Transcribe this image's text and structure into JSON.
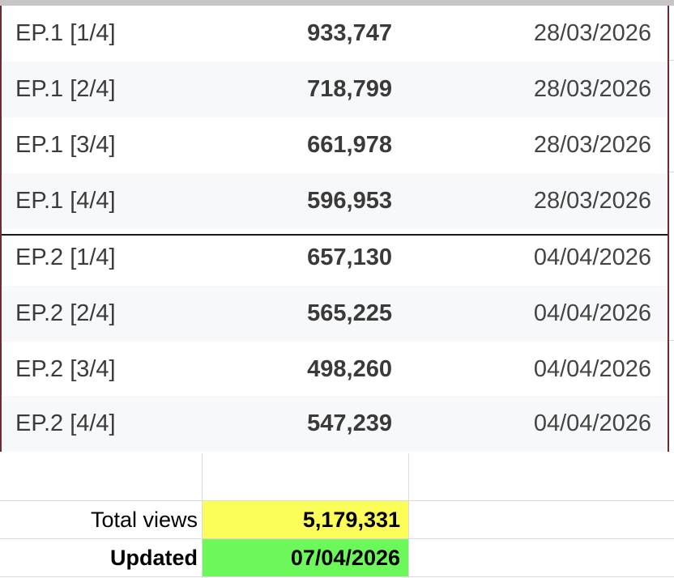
{
  "episodes": [
    {
      "ep": "EP.1 [1/4]",
      "views": "933,747",
      "date": "28/03/2026"
    },
    {
      "ep": "EP.1 [2/4]",
      "views": "718,799",
      "date": "28/03/2026"
    },
    {
      "ep": "EP.1 [3/4]",
      "views": "661,978",
      "date": "28/03/2026"
    },
    {
      "ep": "EP.1 [4/4]",
      "views": "596,953",
      "date": "28/03/2026"
    },
    {
      "ep": "EP.2 [1/4]",
      "views": "657,130",
      "date": "04/04/2026"
    },
    {
      "ep": "EP.2 [2/4]",
      "views": "565,225",
      "date": "04/04/2026"
    },
    {
      "ep": "EP.2 [3/4]",
      "views": "498,260",
      "date": "04/04/2026"
    },
    {
      "ep": "EP.2 [4/4]",
      "views": "547,239",
      "date": "04/04/2026"
    }
  ],
  "summary": {
    "total_label": "Total views",
    "total_value": "5,179,331",
    "updated_label": "Updated",
    "updated_value": "07/04/2026"
  },
  "colors": {
    "total_highlight": "#fdfd5a",
    "updated_highlight": "#6cf75a",
    "table_border": "#6d2b33"
  }
}
